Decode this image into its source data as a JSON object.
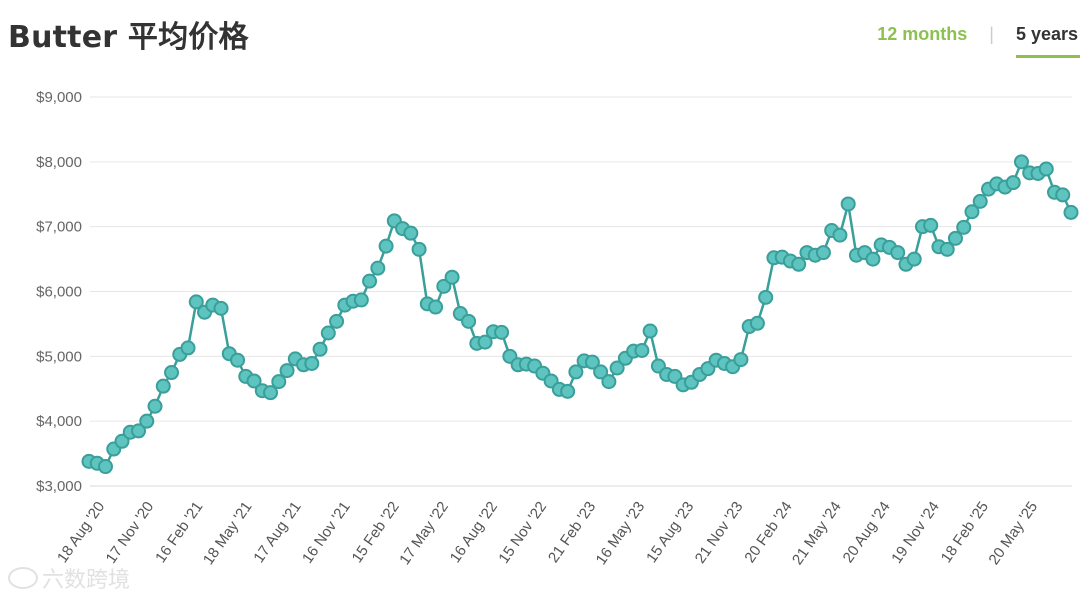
{
  "header": {
    "title": "Butter 平均价格",
    "tabs": [
      {
        "label": "12 months",
        "active": false
      },
      {
        "label": "5 years",
        "active": true
      }
    ]
  },
  "watermark": {
    "text": "六数跨境"
  },
  "colors": {
    "line": "#3a9e9a",
    "marker_fill": "#5ec4bf",
    "accent": "#8cc152",
    "grid": "#e6e6e6"
  },
  "chart_data": {
    "type": "line",
    "title": "Butter 平均价格",
    "xlabel": "",
    "ylabel": "",
    "ylim": [
      3000,
      9000
    ],
    "yticks": [
      3000,
      4000,
      5000,
      6000,
      7000,
      8000,
      9000
    ],
    "ytick_labels": [
      "$3,000",
      "$4,000",
      "$5,000",
      "$6,000",
      "$7,000",
      "$8,000",
      "$9,000"
    ],
    "xtick_labels": [
      "18 Aug '20",
      "17 Nov '20",
      "16 Feb '21",
      "18 May '21",
      "17 Aug '21",
      "16 Nov '21",
      "15 Feb '22",
      "17 May '22",
      "16 Aug '22",
      "15 Nov '22",
      "21 Feb '23",
      "16 May '23",
      "15 Aug '23",
      "21 Nov '23",
      "20 Feb '24",
      "21 May '24",
      "20 Aug '24",
      "19 Nov '24",
      "18 Feb '25",
      "20 May '25"
    ],
    "grid": true,
    "legend": "none",
    "series": [
      {
        "values": [
          3380,
          3350,
          3300,
          3570,
          3690,
          3830,
          3850,
          4000,
          4230,
          4540,
          4750,
          5030,
          5130,
          5840,
          5680,
          5790,
          5740,
          5040,
          4940,
          4690,
          4620,
          4470,
          4440,
          4610,
          4780,
          4960,
          4870,
          4890,
          5110,
          5360,
          5540,
          5790,
          5850,
          5870,
          6160,
          6360,
          6700,
          7090,
          6970,
          6900,
          6650,
          5810,
          5760,
          6080,
          6220,
          5660,
          5540,
          5200,
          5220,
          5380,
          5370,
          5000,
          4870,
          4880,
          4850,
          4740,
          4620,
          4490,
          4460,
          4760,
          4930,
          4910,
          4760,
          4610,
          4820,
          4970,
          5080,
          5090,
          5390,
          4850,
          4720,
          4690,
          4560,
          4600,
          4720,
          4810,
          4940,
          4890,
          4840,
          4950,
          5460,
          5510,
          5910,
          6520,
          6530,
          6470,
          6420,
          6600,
          6560,
          6600,
          6940,
          6870,
          7350,
          6560,
          6600,
          6500,
          6720,
          6680,
          6600,
          6420,
          6500,
          7000,
          7020,
          6690,
          6650,
          6820,
          6990,
          7230,
          7390,
          7580,
          7660,
          7610,
          7680,
          8000,
          7830,
          7820,
          7890,
          7530,
          7490,
          7220
        ]
      }
    ]
  }
}
